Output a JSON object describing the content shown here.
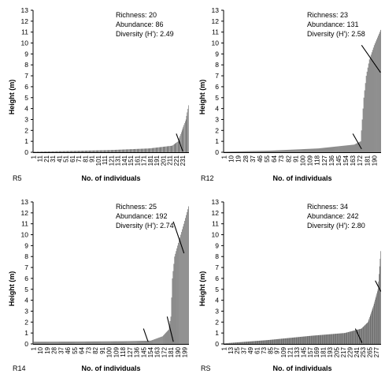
{
  "chart_data": [
    {
      "type": "bar",
      "panel_label": "R5",
      "xlabel": "No. of individuals",
      "ylabel": "Height (m)",
      "ylim": [
        0,
        13
      ],
      "yticks": [
        0,
        1,
        2,
        3,
        4,
        5,
        6,
        7,
        8,
        9,
        10,
        11,
        12,
        13
      ],
      "xticks": [
        "1",
        "11",
        "21",
        "31",
        "41",
        "51",
        "61",
        "71",
        "81",
        "91",
        "101",
        "111",
        "121",
        "131",
        "141",
        "151",
        "161",
        "171",
        "181",
        "191",
        "201",
        "211",
        "221",
        "231"
      ],
      "n": 240,
      "grid": false,
      "annotations": [
        "Richness: 20",
        "Abundance: 86",
        "Diversity (H'): 2.49"
      ],
      "values_profile": [
        [
          1,
          0.05
        ],
        [
          60,
          0.12
        ],
        [
          120,
          0.2
        ],
        [
          180,
          0.35
        ],
        [
          215,
          0.6
        ],
        [
          224,
          1.0
        ],
        [
          230,
          2.0
        ],
        [
          236,
          3.0
        ],
        [
          240,
          4.3
        ]
      ],
      "breaks": [
        [
          221,
          1.7,
          231,
          0.1
        ]
      ]
    },
    {
      "type": "bar",
      "panel_label": "R12",
      "xlabel": "No. of individuals",
      "ylabel": "Height (m)",
      "ylim": [
        0,
        13
      ],
      "yticks": [
        0,
        1,
        2,
        3,
        4,
        5,
        6,
        7,
        8,
        9,
        10,
        11,
        12,
        13
      ],
      "xticks": [
        "1",
        "10",
        "19",
        "28",
        "37",
        "46",
        "55",
        "64",
        "73",
        "82",
        "91",
        "100",
        "109",
        "118",
        "127",
        "136",
        "145",
        "154",
        "163",
        "172",
        "181",
        "190"
      ],
      "n": 198,
      "grid": false,
      "annotations": [
        "Richness: 23",
        "Abundance: 131",
        "Diversity (H'): 2.58"
      ],
      "values_profile": [
        [
          1,
          0.05
        ],
        [
          60,
          0.15
        ],
        [
          120,
          0.35
        ],
        [
          165,
          0.7
        ],
        [
          173,
          1.0
        ],
        [
          175,
          3.0
        ],
        [
          177,
          5.0
        ],
        [
          180,
          7.0
        ],
        [
          184,
          8.5
        ],
        [
          190,
          9.8
        ],
        [
          198,
          11.2
        ]
      ],
      "breaks": [
        [
          163,
          1.7,
          174,
          0.3
        ],
        [
          174,
          9.8,
          198,
          7.3
        ]
      ]
    },
    {
      "type": "bar",
      "panel_label": "R14",
      "xlabel": "No. of individuals",
      "ylabel": "Height (m)",
      "ylim": [
        0,
        13
      ],
      "yticks": [
        0,
        1,
        2,
        3,
        4,
        5,
        6,
        7,
        8,
        9,
        10,
        11,
        12,
        13
      ],
      "xticks": [
        "1",
        "10",
        "19",
        "28",
        "37",
        "46",
        "55",
        "64",
        "73",
        "82",
        "91",
        "100",
        "109",
        "118",
        "127",
        "136",
        "145",
        "154",
        "163",
        "172",
        "181",
        "190",
        "199"
      ],
      "n": 204,
      "grid": false,
      "annotations": [
        "Richness: 25",
        "Abundance: 192",
        "Diversity (H'): 2.74"
      ],
      "values_profile": [
        [
          1,
          0.2
        ],
        [
          60,
          0.22
        ],
        [
          120,
          0.25
        ],
        [
          155,
          0.3
        ],
        [
          170,
          0.7
        ],
        [
          178,
          1.3
        ],
        [
          181,
          2.5
        ],
        [
          183,
          6.0
        ],
        [
          186,
          8.0
        ],
        [
          192,
          9.5
        ],
        [
          198,
          11.0
        ],
        [
          204,
          12.6
        ]
      ],
      "breaks": [
        [
          145,
          1.4,
          151,
          0.2
        ],
        [
          176,
          2.5,
          184,
          0.2
        ],
        [
          184,
          11.2,
          198,
          8.3
        ]
      ]
    },
    {
      "type": "bar",
      "panel_label": "RS",
      "xlabel": "No. of individuals",
      "ylabel": "Height (m)",
      "ylim": [
        0,
        13
      ],
      "yticks": [
        0,
        1,
        2,
        3,
        4,
        5,
        6,
        7,
        8,
        9,
        10,
        11,
        12,
        13
      ],
      "xticks": [
        "1",
        "13",
        "25",
        "37",
        "49",
        "61",
        "73",
        "85",
        "97",
        "109",
        "121",
        "133",
        "145",
        "157",
        "169",
        "181",
        "193",
        "205",
        "217",
        "229",
        "241",
        "253",
        "265",
        "277"
      ],
      "n": 285,
      "grid": false,
      "annotations": [
        "Richness: 34",
        "Abundance: 242",
        "Diversity (H'): 2.80"
      ],
      "values_profile": [
        [
          1,
          0.05
        ],
        [
          80,
          0.35
        ],
        [
          160,
          0.75
        ],
        [
          220,
          1.0
        ],
        [
          250,
          1.4
        ],
        [
          262,
          2.0
        ],
        [
          272,
          3.5
        ],
        [
          280,
          5.0
        ],
        [
          285,
          8.5
        ]
      ],
      "breaks": [
        [
          239,
          1.4,
          251,
          0.1
        ],
        [
          275,
          5.8,
          285,
          4.8
        ]
      ]
    }
  ]
}
